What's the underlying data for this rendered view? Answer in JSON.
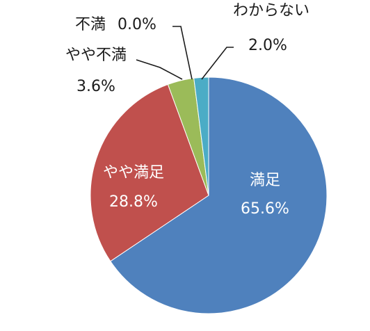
{
  "chart_data": {
    "type": "pie",
    "title": "",
    "slices": [
      {
        "label": "満足",
        "value": 65.6,
        "value_label": "65.6%",
        "color": "#4f81bd"
      },
      {
        "label": "やや満足",
        "value": 28.8,
        "value_label": "28.8%",
        "color": "#c0504d"
      },
      {
        "label": "やや不満",
        "value": 3.6,
        "value_label": "3.6%",
        "color": "#9bbb59"
      },
      {
        "label": "不満",
        "value": 0.0,
        "value_label": "0.0%",
        "color": "#8064a2"
      },
      {
        "label": "わからない",
        "value": 2.0,
        "value_label": "2.0%",
        "color": "#4bacc6"
      }
    ],
    "legend": "none",
    "start_angle": "12 o'clock",
    "direction": "clockwise"
  }
}
